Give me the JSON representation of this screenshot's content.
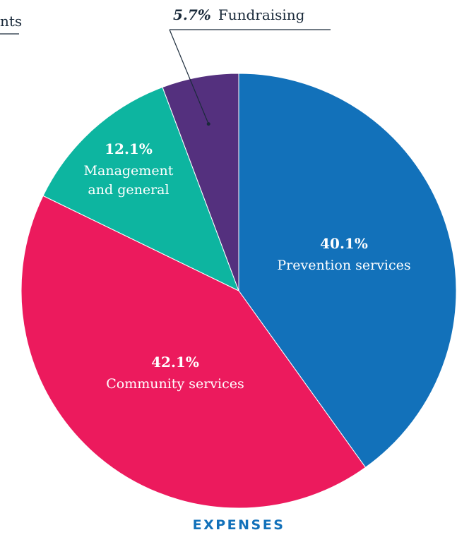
{
  "chart_data": {
    "type": "pie",
    "title": "EXPENSES",
    "start_angle_deg": 0,
    "direction": "clockwise",
    "slices": [
      {
        "label": "Prevention services",
        "value": 40.1,
        "value_label": "40.1%",
        "color": "#1271BA",
        "label_position": "inside"
      },
      {
        "label": "Community services",
        "value": 42.1,
        "value_label": "42.1%",
        "color": "#EC1A5D",
        "label_position": "inside"
      },
      {
        "label": "Management and general",
        "label_lines": [
          "Management",
          "and general"
        ],
        "value": 12.1,
        "value_label": "12.1%",
        "color": "#0DB5A0",
        "label_position": "inside"
      },
      {
        "label": "Fundraising",
        "value": 5.7,
        "value_label": "5.7%",
        "color": "#54307E",
        "label_position": "callout-top"
      }
    ],
    "cropped_label": {
      "text": "nts"
    }
  },
  "colors": {
    "title": "#1271BA",
    "label_inside": "#ffffff",
    "label_outside": "#1a2a3a",
    "leader_line": "#1a2a3a",
    "slice_border": "#ffffff"
  }
}
